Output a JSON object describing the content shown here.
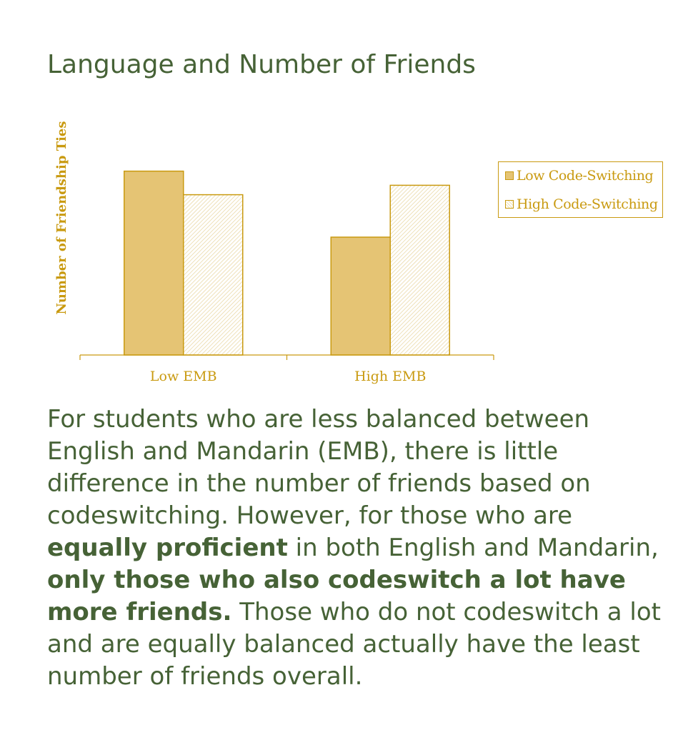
{
  "title": "Language and Number of Friends",
  "colors": {
    "text_green": "#466236",
    "chart_gold": "#c99a10",
    "bar_fill_solid": "#e5c474"
  },
  "chart_data": {
    "type": "bar",
    "title": "",
    "xlabel": "",
    "ylabel": "Number of Friendship Ties",
    "categories": [
      "Low EMB",
      "High EMB"
    ],
    "series": [
      {
        "name": "Low Code-Switching",
        "values": [
          7.8,
          5.0
        ],
        "style": "solid"
      },
      {
        "name": "High Code-Switching",
        "values": [
          6.8,
          7.2
        ],
        "style": "hatched"
      }
    ],
    "ylim": [
      0,
      10
    ],
    "y_ticks_shown": false,
    "grid": false,
    "legend": "right"
  },
  "description": {
    "parts": [
      {
        "text": "For students who are less balanced between English and Mandarin (EMB), there is little difference in the number of friends based on codeswitching. However, for those who are ",
        "bold": false
      },
      {
        "text": "equally proficient",
        "bold": true
      },
      {
        "text": " in both English and Mandarin, ",
        "bold": false
      },
      {
        "text": "only those who also codeswitch a lot have more friends.",
        "bold": true
      },
      {
        "text": " Those who do not codeswitch a lot and are equally balanced actually have the least number of friends overall.",
        "bold": false
      }
    ]
  }
}
